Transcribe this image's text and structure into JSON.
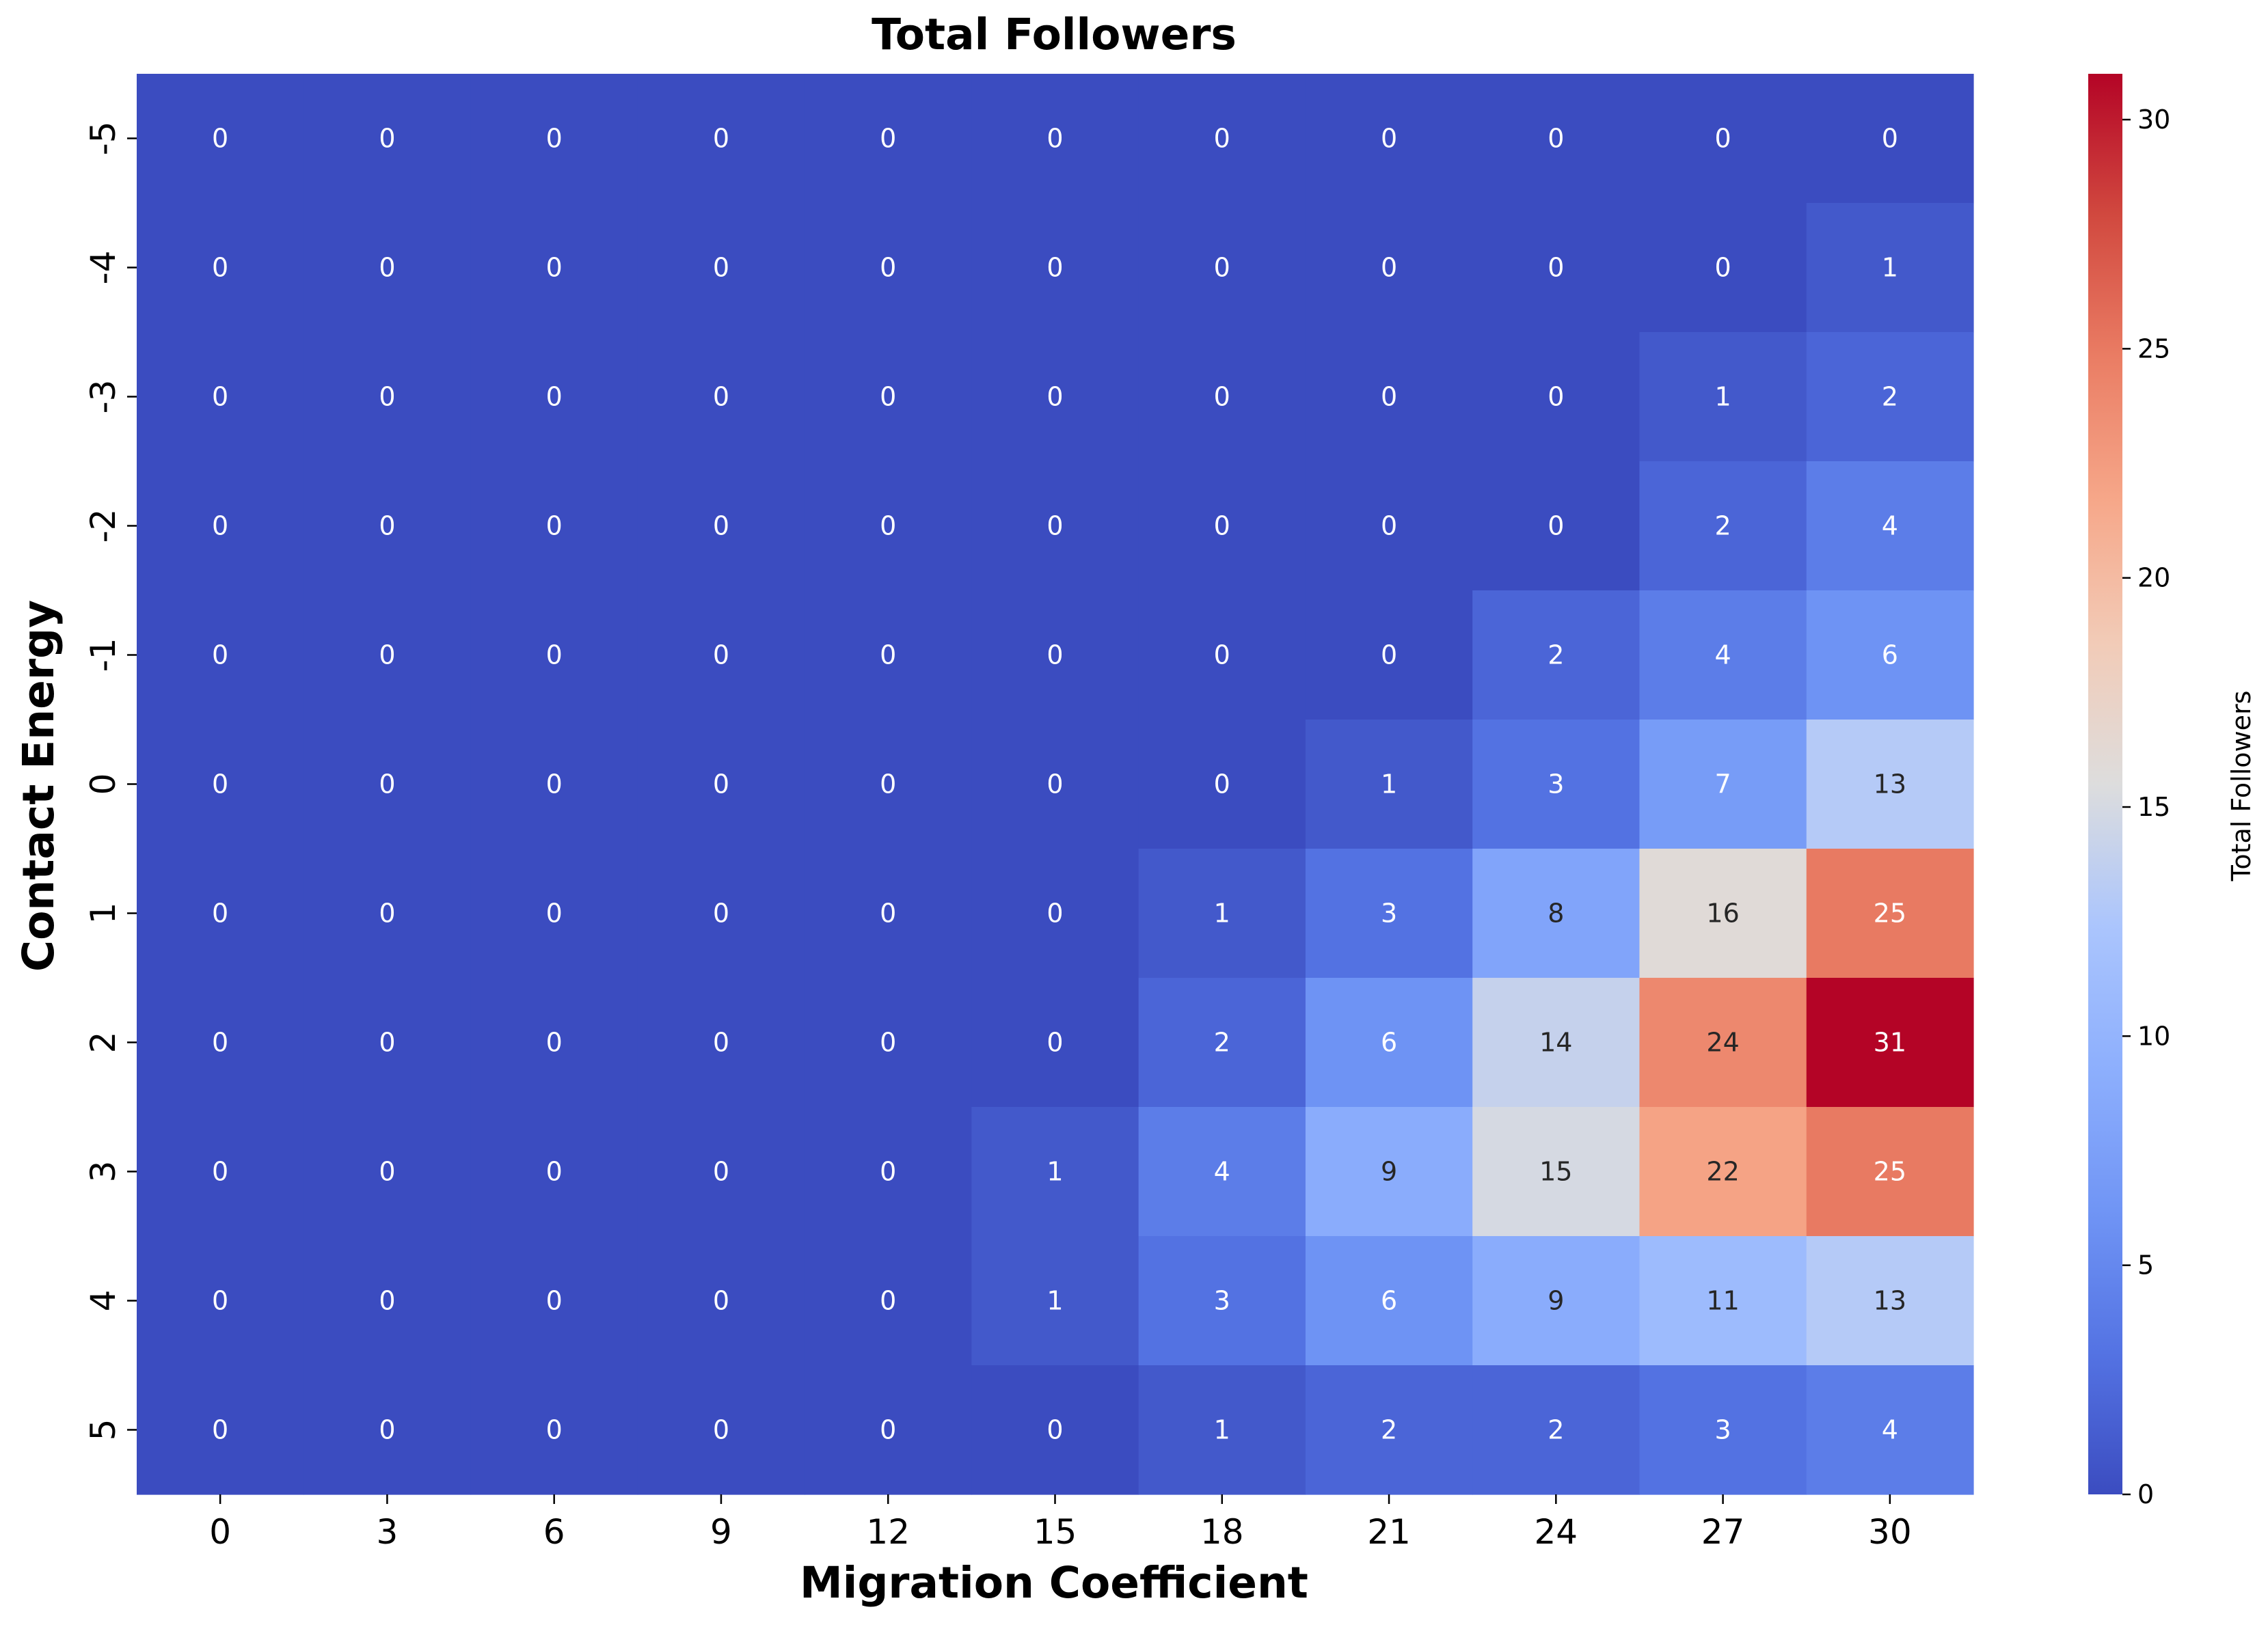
{
  "chart_data": {
    "type": "heatmap",
    "title": "Total Followers",
    "xlabel": "Migration Coefficient",
    "ylabel": "Contact Energy",
    "x_categories": [
      "0",
      "3",
      "6",
      "9",
      "12",
      "15",
      "18",
      "21",
      "24",
      "27",
      "30"
    ],
    "y_categories": [
      "-5",
      "-4",
      "-3",
      "-2",
      "-1",
      "0",
      "1",
      "2",
      "3",
      "4",
      "5"
    ],
    "values": [
      [
        0,
        0,
        0,
        0,
        0,
        0,
        0,
        0,
        0,
        0,
        0
      ],
      [
        0,
        0,
        0,
        0,
        0,
        0,
        0,
        0,
        0,
        0,
        1
      ],
      [
        0,
        0,
        0,
        0,
        0,
        0,
        0,
        0,
        0,
        1,
        2
      ],
      [
        0,
        0,
        0,
        0,
        0,
        0,
        0,
        0,
        0,
        2,
        4
      ],
      [
        0,
        0,
        0,
        0,
        0,
        0,
        0,
        0,
        2,
        4,
        6
      ],
      [
        0,
        0,
        0,
        0,
        0,
        0,
        0,
        1,
        3,
        7,
        13
      ],
      [
        0,
        0,
        0,
        0,
        0,
        0,
        1,
        3,
        8,
        16,
        25
      ],
      [
        0,
        0,
        0,
        0,
        0,
        0,
        2,
        6,
        14,
        24,
        31
      ],
      [
        0,
        0,
        0,
        0,
        0,
        1,
        4,
        9,
        15,
        22,
        25
      ],
      [
        0,
        0,
        0,
        0,
        0,
        1,
        3,
        6,
        9,
        11,
        13
      ],
      [
        0,
        0,
        0,
        0,
        0,
        0,
        1,
        2,
        2,
        3,
        4
      ]
    ],
    "colormap": "coolwarm",
    "vmin": 0,
    "vmax": 31,
    "colorbar": {
      "label": "Total Followers",
      "ticks": [
        "0",
        "5",
        "10",
        "15",
        "20",
        "25",
        "30"
      ]
    },
    "annotations": true,
    "grid": false
  }
}
